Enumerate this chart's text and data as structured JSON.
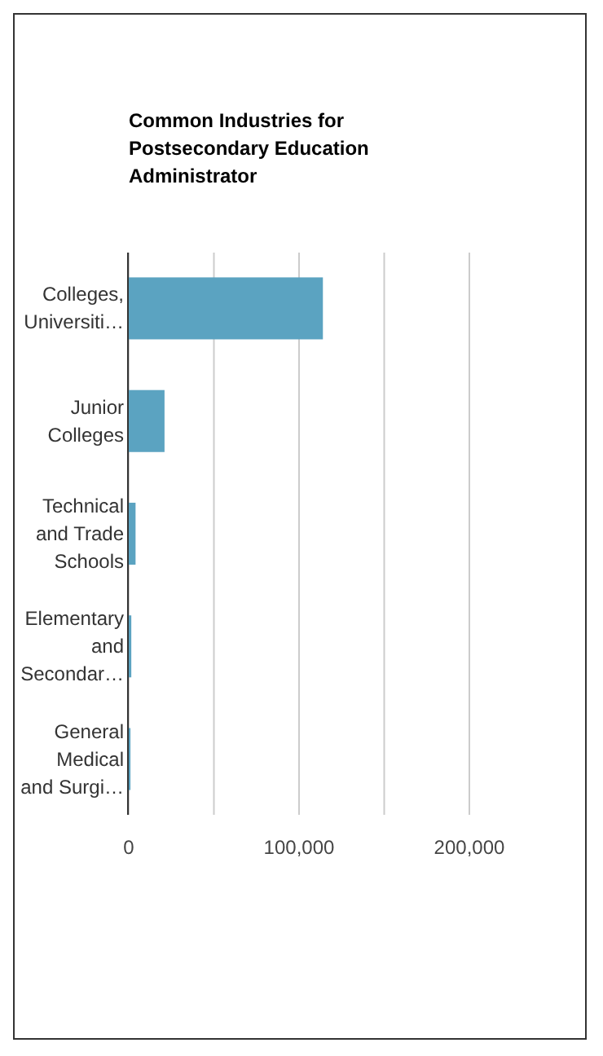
{
  "chart_data": {
    "type": "bar",
    "orientation": "horizontal",
    "title": "Common Industries for Postsecondary Education Administrator",
    "categories": [
      "Colleges, Universiti…",
      "Junior Colleges",
      "Technical and Trade Schools",
      "Elementary and Secondar…",
      "General Medical and Surgi…"
    ],
    "values": [
      114000,
      21000,
      4000,
      1500,
      1000
    ],
    "color": "#5ba3c1",
    "xlim": [
      0,
      200000
    ],
    "xticks": [
      0,
      {
        "value": 50000,
        "label": null
      },
      {
        "value": 100000,
        "label": "100,000"
      },
      {
        "value": 150000,
        "label": null
      },
      {
        "value": 200000,
        "label": "200,000"
      }
    ],
    "grid": "x"
  }
}
